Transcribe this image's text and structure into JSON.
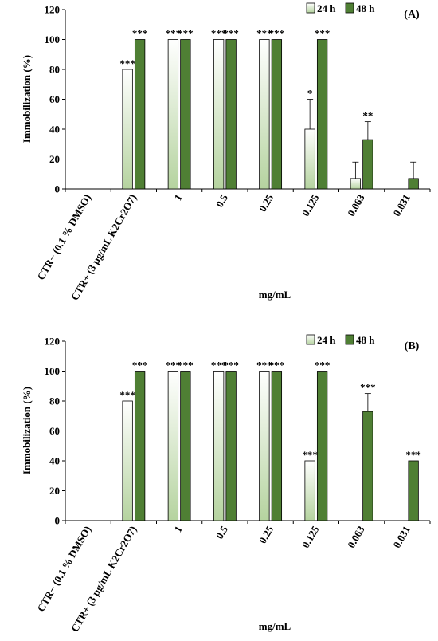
{
  "colors": {
    "bar_48h": "#4f7f34",
    "bar_24h_top": "#ffffff",
    "bar_24h_bottom": "#b5d39f",
    "axis": "#000000"
  },
  "chart_data": [
    {
      "type": "bar",
      "panel_label": "(A)",
      "categories": [
        "CTR− (0.1 % DMSO)",
        "CTR+ (3 μg/mL K2Cr2O7)",
        "1",
        "0.5",
        "0.25",
        "0.125",
        "0.063",
        "0.031"
      ],
      "series": [
        {
          "name": "24 h",
          "values": [
            0,
            80,
            100,
            100,
            100,
            40,
            7,
            0
          ],
          "errors": [
            0,
            0,
            0,
            0,
            0,
            20,
            11,
            0
          ],
          "labels": [
            "",
            "***",
            "***",
            "***",
            "***",
            "*",
            "",
            ""
          ]
        },
        {
          "name": "48 h",
          "values": [
            0,
            100,
            100,
            100,
            100,
            100,
            33,
            7
          ],
          "errors": [
            0,
            0,
            0,
            0,
            0,
            0,
            12,
            11
          ],
          "labels": [
            "",
            "***",
            "***",
            "***",
            "***",
            "***",
            "**",
            ""
          ]
        }
      ],
      "xlabel": "mg/mL",
      "ylabel": "Immobilization (%)",
      "ylim": [
        0,
        120
      ],
      "yticks": [
        0,
        20,
        40,
        60,
        80,
        100,
        120
      ],
      "grid": false,
      "legend_position": "top-right"
    },
    {
      "type": "bar",
      "panel_label": "(B)",
      "categories": [
        "CTR− (0.1 % DMSO)",
        "CTR+ (3 μg/mL K2Cr2O7)",
        "1",
        "0.5",
        "0.25",
        "0.125",
        "0.063",
        "0.031"
      ],
      "series": [
        {
          "name": "24 h",
          "values": [
            0,
            80,
            100,
            100,
            100,
            40,
            0,
            0
          ],
          "errors": [
            0,
            0,
            0,
            0,
            0,
            0,
            0,
            0
          ],
          "labels": [
            "",
            "***",
            "***",
            "***",
            "***",
            "***",
            "",
            ""
          ]
        },
        {
          "name": "48 h",
          "values": [
            0,
            100,
            100,
            100,
            100,
            100,
            73,
            40
          ],
          "errors": [
            0,
            0,
            0,
            0,
            0,
            0,
            12,
            0
          ],
          "labels": [
            "",
            "***",
            "***",
            "***",
            "***",
            "***",
            "***",
            "***"
          ]
        }
      ],
      "xlabel": "mg/mL",
      "ylabel": "Immobilization (%)",
      "ylim": [
        0,
        120
      ],
      "yticks": [
        0,
        20,
        40,
        60,
        80,
        100,
        120
      ],
      "grid": false,
      "legend_position": "top-right"
    }
  ]
}
